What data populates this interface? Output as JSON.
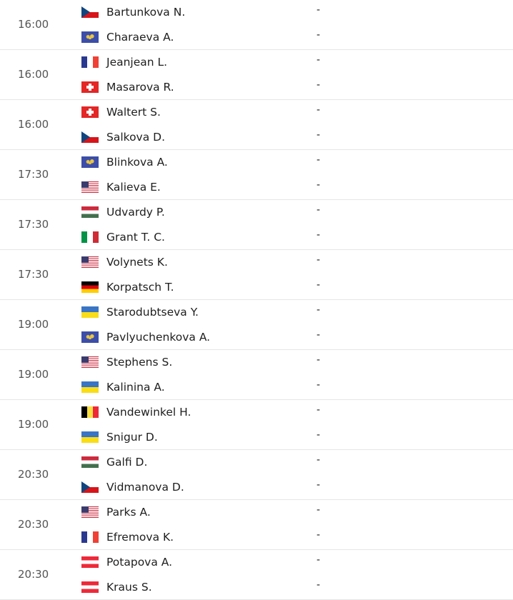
{
  "matches": [
    {
      "time": "16:00",
      "players": [
        {
          "name": "Bartunkova N.",
          "flag": "cz",
          "score": "-"
        },
        {
          "name": "Charaeva A.",
          "flag": "world",
          "score": "-"
        }
      ]
    },
    {
      "time": "16:00",
      "players": [
        {
          "name": "Jeanjean L.",
          "flag": "fr",
          "score": "-"
        },
        {
          "name": "Masarova R.",
          "flag": "ch",
          "score": "-"
        }
      ]
    },
    {
      "time": "16:00",
      "players": [
        {
          "name": "Waltert S.",
          "flag": "ch",
          "score": "-"
        },
        {
          "name": "Salkova D.",
          "flag": "cz",
          "score": "-"
        }
      ]
    },
    {
      "time": "17:30",
      "players": [
        {
          "name": "Blinkova A.",
          "flag": "world",
          "score": "-"
        },
        {
          "name": "Kalieva E.",
          "flag": "us",
          "score": "-"
        }
      ]
    },
    {
      "time": "17:30",
      "players": [
        {
          "name": "Udvardy P.",
          "flag": "hu",
          "score": "-"
        },
        {
          "name": "Grant T. C.",
          "flag": "it",
          "score": "-"
        }
      ]
    },
    {
      "time": "17:30",
      "players": [
        {
          "name": "Volynets K.",
          "flag": "us",
          "score": "-"
        },
        {
          "name": "Korpatsch T.",
          "flag": "de",
          "score": "-"
        }
      ]
    },
    {
      "time": "19:00",
      "players": [
        {
          "name": "Starodubtseva Y.",
          "flag": "ua",
          "score": "-"
        },
        {
          "name": "Pavlyuchenkova A.",
          "flag": "world",
          "score": "-"
        }
      ]
    },
    {
      "time": "19:00",
      "players": [
        {
          "name": "Stephens S.",
          "flag": "us",
          "score": "-"
        },
        {
          "name": "Kalinina A.",
          "flag": "ua",
          "score": "-"
        }
      ]
    },
    {
      "time": "19:00",
      "players": [
        {
          "name": "Vandewinkel H.",
          "flag": "be",
          "score": "-"
        },
        {
          "name": "Snigur D.",
          "flag": "ua",
          "score": "-"
        }
      ]
    },
    {
      "time": "20:30",
      "players": [
        {
          "name": "Galfi D.",
          "flag": "hu",
          "score": "-"
        },
        {
          "name": "Vidmanova D.",
          "flag": "cz",
          "score": "-"
        }
      ]
    },
    {
      "time": "20:30",
      "players": [
        {
          "name": "Parks A.",
          "flag": "us",
          "score": "-"
        },
        {
          "name": "Efremova K.",
          "flag": "fr",
          "score": "-"
        }
      ]
    },
    {
      "time": "20:30",
      "players": [
        {
          "name": "Potapova A.",
          "flag": "at",
          "score": "-"
        },
        {
          "name": "Kraus S.",
          "flag": "at",
          "score": "-"
        }
      ]
    }
  ]
}
